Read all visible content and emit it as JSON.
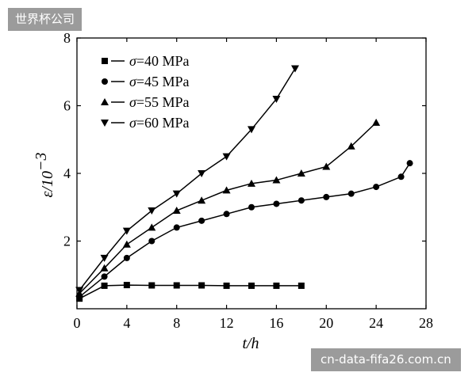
{
  "watermarks": {
    "top_left": "世界杯公司",
    "bottom_right": "cn-data-fifa26.com.cn"
  },
  "chart_data": {
    "type": "line",
    "xlabel": {
      "symbol": "t",
      "unit": "/h"
    },
    "ylabel": {
      "symbol": "ε",
      "unit": "/10",
      "exponent": "−3"
    },
    "xlim": [
      0,
      28
    ],
    "ylim": [
      0,
      8
    ],
    "xticks": [
      0,
      4,
      8,
      12,
      16,
      20,
      24,
      28
    ],
    "yticks": [
      2,
      4,
      6,
      8
    ],
    "legend_position": "top-left",
    "series": [
      {
        "name": "σ=40 MPa",
        "prefix": "σ",
        "rest": "=40 MPa",
        "marker": "square",
        "x": [
          0.2,
          2.2,
          4,
          6,
          8,
          10,
          12,
          14,
          16,
          18
        ],
        "y": [
          0.3,
          0.68,
          0.7,
          0.69,
          0.69,
          0.69,
          0.68,
          0.68,
          0.68,
          0.68
        ]
      },
      {
        "name": "σ=45 MPa",
        "prefix": "σ",
        "rest": "=45 MPa",
        "marker": "circle",
        "x": [
          0.2,
          2.2,
          4,
          6,
          8,
          10,
          12,
          14,
          16,
          18,
          20,
          22,
          24,
          26,
          26.7
        ],
        "y": [
          0.35,
          0.95,
          1.5,
          2.0,
          2.4,
          2.6,
          2.8,
          3.0,
          3.1,
          3.2,
          3.3,
          3.4,
          3.6,
          3.9,
          4.3
        ]
      },
      {
        "name": "σ=55 MPa",
        "prefix": "σ",
        "rest": "=55 MPa",
        "marker": "triangle-up",
        "x": [
          0.2,
          2.2,
          4,
          6,
          8,
          10,
          12,
          14,
          16,
          18,
          20,
          22,
          24
        ],
        "y": [
          0.45,
          1.2,
          1.9,
          2.4,
          2.9,
          3.2,
          3.5,
          3.7,
          3.8,
          4.0,
          4.2,
          4.8,
          5.5
        ]
      },
      {
        "name": "σ=60 MPa",
        "prefix": "σ",
        "rest": "=60 MPa",
        "marker": "triangle-down",
        "x": [
          0.2,
          2.2,
          4,
          6,
          8,
          10,
          12,
          14,
          16,
          17.5
        ],
        "y": [
          0.55,
          1.5,
          2.3,
          2.9,
          3.4,
          4.0,
          4.5,
          5.3,
          6.2,
          7.1
        ]
      }
    ]
  }
}
